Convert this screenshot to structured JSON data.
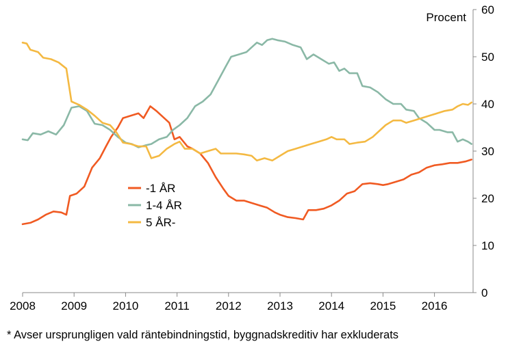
{
  "chart_data": {
    "type": "line",
    "ylabel": "Procent",
    "ylim": [
      0,
      60
    ],
    "y_ticks": [
      "0",
      "10",
      "20",
      "30",
      "40",
      "50",
      "60"
    ],
    "xlim": [
      2008,
      2016.75
    ],
    "x_ticks": [
      "2008",
      "2009",
      "2010",
      "2011",
      "2012",
      "2013",
      "2014",
      "2015",
      "2016"
    ],
    "grid": false,
    "legend_position": "center-left",
    "series": [
      {
        "name": "-1 ÅR",
        "color": "#f05a22",
        "points": [
          [
            2008.0,
            14.5
          ],
          [
            2008.15,
            14.8
          ],
          [
            2008.3,
            15.5
          ],
          [
            2008.45,
            16.5
          ],
          [
            2008.6,
            17.2
          ],
          [
            2008.75,
            17.0
          ],
          [
            2008.85,
            16.5
          ],
          [
            2008.92,
            20.5
          ],
          [
            2009.05,
            21.0
          ],
          [
            2009.2,
            22.5
          ],
          [
            2009.35,
            26.5
          ],
          [
            2009.5,
            28.5
          ],
          [
            2009.62,
            31.0
          ],
          [
            2009.72,
            33.0
          ],
          [
            2009.85,
            35.0
          ],
          [
            2009.95,
            37.0
          ],
          [
            2010.1,
            37.5
          ],
          [
            2010.25,
            38.0
          ],
          [
            2010.35,
            37.0
          ],
          [
            2010.48,
            39.5
          ],
          [
            2010.6,
            38.5
          ],
          [
            2010.75,
            37.0
          ],
          [
            2010.85,
            36.0
          ],
          [
            2010.95,
            32.5
          ],
          [
            2011.05,
            33.0
          ],
          [
            2011.2,
            31.0
          ],
          [
            2011.3,
            30.5
          ],
          [
            2011.45,
            29.5
          ],
          [
            2011.6,
            27.5
          ],
          [
            2011.75,
            24.5
          ],
          [
            2011.9,
            22.0
          ],
          [
            2012.0,
            20.5
          ],
          [
            2012.15,
            19.5
          ],
          [
            2012.3,
            19.5
          ],
          [
            2012.45,
            19.0
          ],
          [
            2012.6,
            18.5
          ],
          [
            2012.75,
            18.0
          ],
          [
            2012.9,
            17.0
          ],
          [
            2013.0,
            16.5
          ],
          [
            2013.15,
            16.0
          ],
          [
            2013.3,
            15.8
          ],
          [
            2013.45,
            15.5
          ],
          [
            2013.55,
            17.5
          ],
          [
            2013.7,
            17.5
          ],
          [
            2013.85,
            17.8
          ],
          [
            2014.0,
            18.5
          ],
          [
            2014.15,
            19.5
          ],
          [
            2014.3,
            21.0
          ],
          [
            2014.45,
            21.5
          ],
          [
            2014.6,
            23.0
          ],
          [
            2014.75,
            23.2
          ],
          [
            2014.9,
            23.0
          ],
          [
            2015.0,
            22.8
          ],
          [
            2015.1,
            23.0
          ],
          [
            2015.25,
            23.5
          ],
          [
            2015.4,
            24.0
          ],
          [
            2015.55,
            25.0
          ],
          [
            2015.7,
            25.5
          ],
          [
            2015.85,
            26.5
          ],
          [
            2016.0,
            27.0
          ],
          [
            2016.15,
            27.2
          ],
          [
            2016.3,
            27.5
          ],
          [
            2016.45,
            27.5
          ],
          [
            2016.6,
            27.8
          ],
          [
            2016.72,
            28.2
          ]
        ]
      },
      {
        "name": "1-4 ÅR",
        "color": "#8ab8a6",
        "points": [
          [
            2008.0,
            32.5
          ],
          [
            2008.1,
            32.3
          ],
          [
            2008.2,
            33.8
          ],
          [
            2008.35,
            33.5
          ],
          [
            2008.5,
            34.2
          ],
          [
            2008.65,
            33.5
          ],
          [
            2008.8,
            35.5
          ],
          [
            2008.95,
            39.2
          ],
          [
            2009.1,
            39.5
          ],
          [
            2009.25,
            38.5
          ],
          [
            2009.4,
            35.8
          ],
          [
            2009.55,
            35.5
          ],
          [
            2009.7,
            34.5
          ],
          [
            2009.85,
            33.0
          ],
          [
            2010.0,
            31.8
          ],
          [
            2010.12,
            31.5
          ],
          [
            2010.25,
            30.8
          ],
          [
            2010.38,
            31.2
          ],
          [
            2010.5,
            31.5
          ],
          [
            2010.65,
            32.5
          ],
          [
            2010.8,
            33.0
          ],
          [
            2010.92,
            34.5
          ],
          [
            2011.05,
            35.5
          ],
          [
            2011.2,
            37.0
          ],
          [
            2011.35,
            39.5
          ],
          [
            2011.5,
            40.5
          ],
          [
            2011.65,
            42.0
          ],
          [
            2011.8,
            45.0
          ],
          [
            2011.95,
            48.0
          ],
          [
            2012.05,
            50.0
          ],
          [
            2012.2,
            50.5
          ],
          [
            2012.35,
            51.0
          ],
          [
            2012.45,
            52.0
          ],
          [
            2012.55,
            53.0
          ],
          [
            2012.65,
            52.5
          ],
          [
            2012.75,
            53.5
          ],
          [
            2012.85,
            53.8
          ],
          [
            2012.95,
            53.5
          ],
          [
            2013.1,
            53.2
          ],
          [
            2013.25,
            52.5
          ],
          [
            2013.4,
            52.0
          ],
          [
            2013.52,
            49.5
          ],
          [
            2013.65,
            50.5
          ],
          [
            2013.8,
            49.5
          ],
          [
            2013.95,
            48.5
          ],
          [
            2014.05,
            48.8
          ],
          [
            2014.15,
            47.0
          ],
          [
            2014.25,
            47.5
          ],
          [
            2014.35,
            46.5
          ],
          [
            2014.5,
            46.5
          ],
          [
            2014.6,
            43.8
          ],
          [
            2014.75,
            43.5
          ],
          [
            2014.9,
            42.5
          ],
          [
            2015.05,
            41.0
          ],
          [
            2015.2,
            40.0
          ],
          [
            2015.35,
            40.0
          ],
          [
            2015.45,
            38.8
          ],
          [
            2015.6,
            38.5
          ],
          [
            2015.7,
            37.0
          ],
          [
            2015.85,
            36.0
          ],
          [
            2016.0,
            34.5
          ],
          [
            2016.1,
            34.5
          ],
          [
            2016.25,
            34.0
          ],
          [
            2016.35,
            34.0
          ],
          [
            2016.45,
            32.0
          ],
          [
            2016.55,
            32.5
          ],
          [
            2016.65,
            32.0
          ],
          [
            2016.72,
            31.5
          ]
        ]
      },
      {
        "name": "5 ÅR-",
        "color": "#f4b942",
        "points": [
          [
            2008.0,
            53.0
          ],
          [
            2008.08,
            52.8
          ],
          [
            2008.15,
            51.5
          ],
          [
            2008.3,
            51.0
          ],
          [
            2008.4,
            49.8
          ],
          [
            2008.55,
            49.5
          ],
          [
            2008.7,
            48.8
          ],
          [
            2008.85,
            47.5
          ],
          [
            2008.95,
            40.5
          ],
          [
            2009.1,
            39.8
          ],
          [
            2009.25,
            38.8
          ],
          [
            2009.4,
            37.5
          ],
          [
            2009.55,
            36.0
          ],
          [
            2009.7,
            35.5
          ],
          [
            2009.82,
            34.0
          ],
          [
            2009.95,
            31.8
          ],
          [
            2010.1,
            31.5
          ],
          [
            2010.25,
            31.0
          ],
          [
            2010.4,
            31.0
          ],
          [
            2010.5,
            28.5
          ],
          [
            2010.65,
            29.0
          ],
          [
            2010.8,
            30.5
          ],
          [
            2010.95,
            31.5
          ],
          [
            2011.05,
            32.0
          ],
          [
            2011.15,
            30.5
          ],
          [
            2011.3,
            30.5
          ],
          [
            2011.45,
            29.5
          ],
          [
            2011.6,
            30.0
          ],
          [
            2011.75,
            30.5
          ],
          [
            2011.85,
            29.5
          ],
          [
            2012.0,
            29.5
          ],
          [
            2012.15,
            29.5
          ],
          [
            2012.3,
            29.3
          ],
          [
            2012.45,
            29.0
          ],
          [
            2012.55,
            28.0
          ],
          [
            2012.7,
            28.5
          ],
          [
            2012.85,
            28.0
          ],
          [
            2013.0,
            29.0
          ],
          [
            2013.15,
            30.0
          ],
          [
            2013.3,
            30.5
          ],
          [
            2013.45,
            31.0
          ],
          [
            2013.6,
            31.5
          ],
          [
            2013.75,
            32.0
          ],
          [
            2013.9,
            32.5
          ],
          [
            2014.0,
            33.0
          ],
          [
            2014.1,
            32.5
          ],
          [
            2014.25,
            32.5
          ],
          [
            2014.35,
            31.5
          ],
          [
            2014.5,
            31.8
          ],
          [
            2014.65,
            32.0
          ],
          [
            2014.8,
            33.0
          ],
          [
            2014.95,
            34.5
          ],
          [
            2015.05,
            35.5
          ],
          [
            2015.2,
            36.5
          ],
          [
            2015.35,
            36.5
          ],
          [
            2015.45,
            36.0
          ],
          [
            2015.6,
            36.5
          ],
          [
            2015.75,
            37.0
          ],
          [
            2015.9,
            37.5
          ],
          [
            2016.05,
            38.0
          ],
          [
            2016.2,
            38.5
          ],
          [
            2016.35,
            38.8
          ],
          [
            2016.45,
            39.5
          ],
          [
            2016.55,
            40.0
          ],
          [
            2016.65,
            39.8
          ],
          [
            2016.72,
            40.3
          ]
        ]
      }
    ]
  },
  "footnote": "* Avser ursprungligen vald räntebindningstid, byggnadskreditiv har exkluderats"
}
